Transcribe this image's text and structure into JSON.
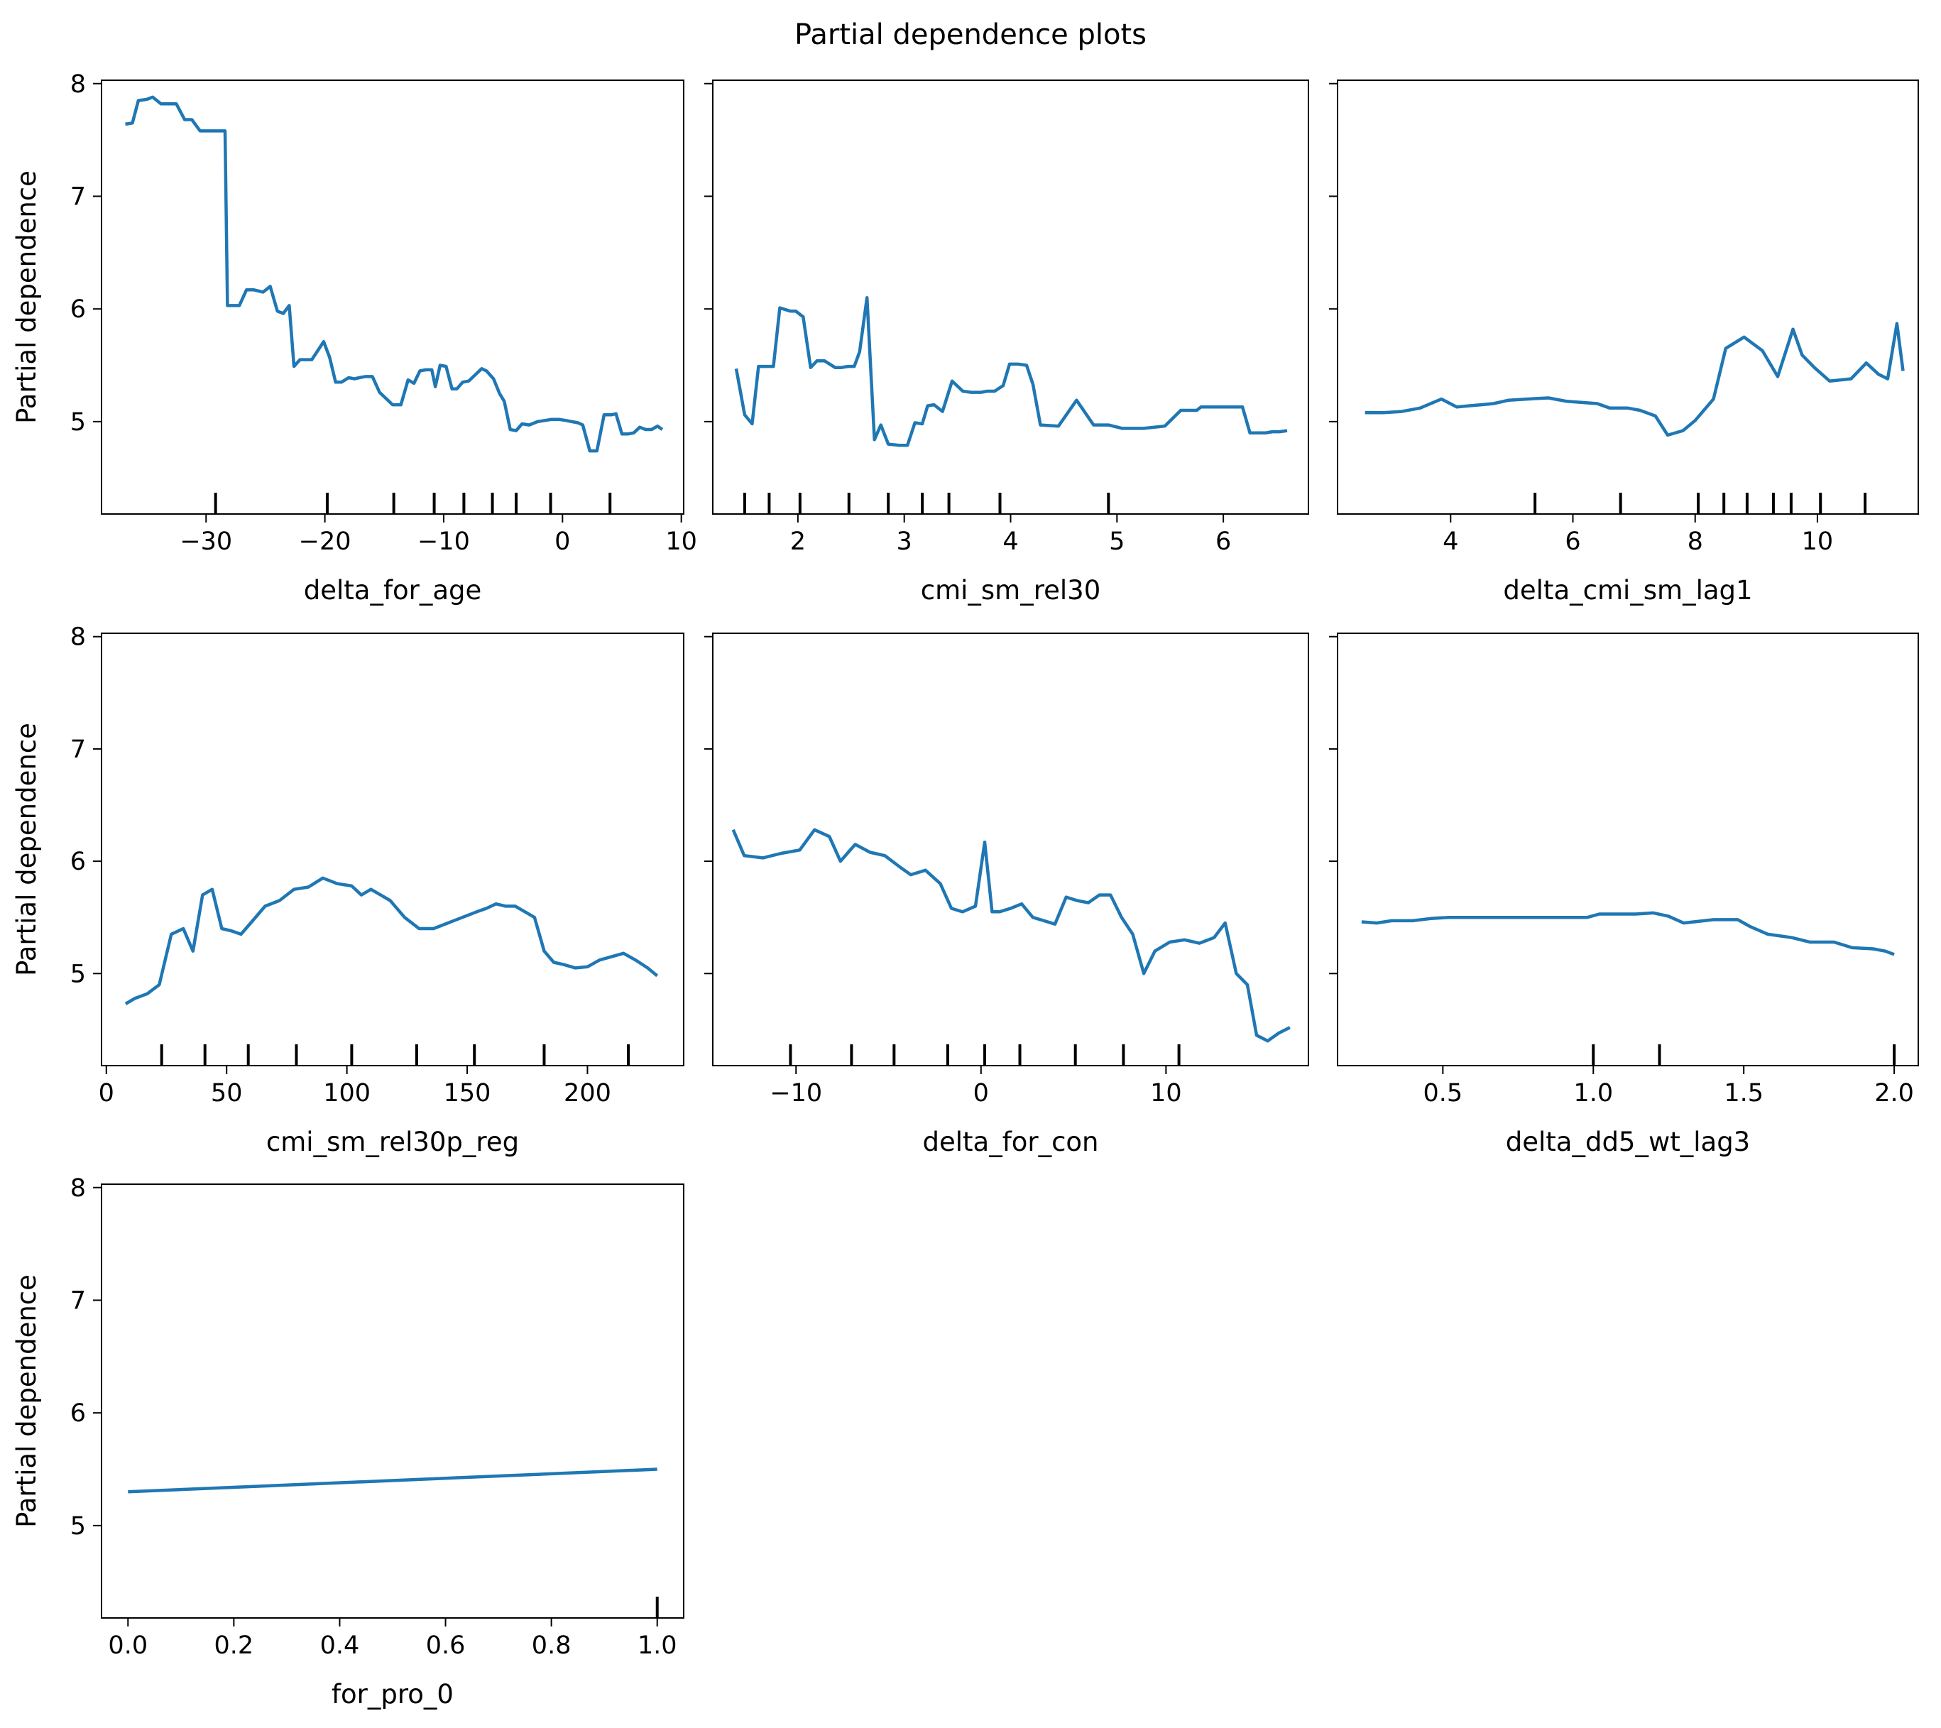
{
  "title": "Partial dependence plots",
  "line_color": "#1f77b4",
  "shared_ylabel": "Partial dependence",
  "chart_data": [
    {
      "type": "line",
      "xlabel": "delta_for_age",
      "ylabel": "Partial dependence",
      "xlim": [
        -38.8,
        10.2
      ],
      "ylim": [
        4.18,
        8.03
      ],
      "xticks": [
        -30,
        -20,
        -10,
        0,
        10
      ],
      "xtick_labels": [
        "−30",
        "−20",
        "−10",
        "0",
        "10"
      ],
      "yticks": [
        5,
        6,
        7,
        8
      ],
      "ytick_labels": [
        "5",
        "6",
        "7",
        "8"
      ],
      "deciles": [
        -29.2,
        -19.8,
        -14.2,
        -10.8,
        -8.3,
        -5.9,
        -3.9,
        -1.0,
        4.0
      ],
      "series": [
        {
          "x": [
            -36.8,
            -36.2,
            -35.7,
            -35.0,
            -34.5,
            -33.8,
            -33.2,
            -32.5,
            -31.8,
            -31.2,
            -30.5,
            -29.9,
            -29.3,
            -28.7,
            -28.4,
            -28.2,
            -27.5,
            -27.2,
            -26.6,
            -26.0,
            -25.2,
            -24.6,
            -24.0,
            -23.5,
            -23.0,
            -22.6,
            -22.1,
            -21.5,
            -21.1,
            -20.6,
            -20.1,
            -19.6,
            -19.1,
            -18.6,
            -18.0,
            -17.5,
            -17.1,
            -16.6,
            -16.0,
            -15.4,
            -14.8,
            -14.3,
            -13.6,
            -13.0,
            -12.5,
            -12.0,
            -11.5,
            -11.0,
            -10.7,
            -10.3,
            -9.8,
            -9.3,
            -8.9,
            -8.4,
            -7.9,
            -7.3,
            -6.8,
            -6.4,
            -5.8,
            -5.3,
            -4.9,
            -4.4,
            -3.9,
            -3.4,
            -2.8,
            -2.1,
            -1.5,
            -0.9,
            -0.3,
            0.3,
            0.8,
            1.3,
            1.7,
            2.3,
            2.9,
            3.5,
            4.1,
            4.5,
            5.0,
            5.5,
            6.0,
            6.5,
            7.0,
            7.5,
            8.0,
            8.4
          ],
          "y": [
            7.64,
            7.65,
            7.85,
            7.86,
            7.88,
            7.82,
            7.82,
            7.82,
            7.68,
            7.68,
            7.58,
            7.58,
            7.58,
            7.58,
            7.58,
            6.03,
            6.03,
            6.03,
            6.17,
            6.17,
            6.15,
            6.2,
            5.98,
            5.96,
            6.03,
            5.49,
            5.55,
            5.55,
            5.55,
            5.63,
            5.71,
            5.57,
            5.35,
            5.35,
            5.39,
            5.38,
            5.39,
            5.4,
            5.4,
            5.26,
            5.2,
            5.15,
            5.15,
            5.37,
            5.34,
            5.45,
            5.46,
            5.46,
            5.31,
            5.5,
            5.49,
            5.29,
            5.29,
            5.35,
            5.36,
            5.42,
            5.47,
            5.45,
            5.38,
            5.25,
            5.18,
            4.93,
            4.92,
            4.98,
            4.97,
            5.0,
            5.01,
            5.02,
            5.02,
            5.01,
            5.0,
            4.99,
            4.97,
            4.74,
            4.74,
            5.06,
            5.06,
            5.07,
            4.89,
            4.89,
            4.9,
            4.95,
            4.93,
            4.93,
            4.96,
            4.93
          ]
        }
      ]
    },
    {
      "type": "line",
      "xlabel": "cmi_sm_rel30",
      "ylabel": "",
      "xlim": [
        1.2,
        6.8
      ],
      "ylim": [
        4.18,
        8.03
      ],
      "xticks": [
        2,
        3,
        4,
        5,
        6
      ],
      "xtick_labels": [
        "2",
        "3",
        "4",
        "5",
        "6"
      ],
      "yticks": [
        5,
        6,
        7,
        8
      ],
      "ytick_labels": [
        "",
        "",
        "",
        ""
      ],
      "deciles": [
        1.5,
        1.73,
        2.02,
        2.48,
        2.85,
        3.17,
        3.42,
        3.9,
        4.92
      ],
      "series": [
        {
          "x": [
            1.42,
            1.5,
            1.57,
            1.63,
            1.72,
            1.77,
            1.83,
            1.93,
            1.98,
            2.05,
            2.12,
            2.18,
            2.25,
            2.35,
            2.41,
            2.47,
            2.53,
            2.58,
            2.65,
            2.72,
            2.78,
            2.85,
            2.95,
            2.98,
            3.03,
            3.1,
            3.17,
            3.22,
            3.28,
            3.36,
            3.45,
            3.55,
            3.63,
            3.72,
            3.78,
            3.85,
            3.93,
            3.99,
            4.07,
            4.15,
            4.21,
            4.28,
            4.45,
            4.62,
            4.78,
            4.92,
            5.05,
            5.12,
            5.25,
            5.45,
            5.6,
            5.75,
            5.79,
            5.95,
            6.08,
            6.18,
            6.25,
            6.31,
            6.4,
            6.46,
            6.53,
            6.6
          ],
          "y": [
            5.47,
            5.06,
            4.98,
            5.49,
            5.49,
            5.49,
            6.01,
            5.98,
            5.98,
            5.93,
            5.48,
            5.54,
            5.54,
            5.48,
            5.48,
            5.49,
            5.49,
            5.62,
            6.1,
            4.84,
            4.97,
            4.8,
            4.79,
            4.79,
            4.79,
            4.99,
            4.98,
            5.14,
            5.15,
            5.09,
            5.36,
            5.27,
            5.26,
            5.26,
            5.27,
            5.27,
            5.32,
            5.51,
            5.51,
            5.5,
            5.33,
            4.97,
            4.96,
            5.19,
            4.97,
            4.97,
            4.94,
            4.94,
            4.94,
            4.96,
            5.1,
            5.1,
            5.13,
            5.13,
            5.13,
            5.13,
            4.9,
            4.9,
            4.9,
            4.91,
            4.91,
            4.92
          ]
        }
      ]
    },
    {
      "type": "line",
      "xlabel": "delta_cmi_sm_lag1",
      "ylabel": "",
      "xlim": [
        2.15,
        11.65
      ],
      "ylim": [
        4.18,
        8.03
      ],
      "xticks": [
        4,
        6,
        8,
        10
      ],
      "xtick_labels": [
        "4",
        "6",
        "8",
        "10"
      ],
      "yticks": [
        5,
        6,
        7,
        8
      ],
      "ytick_labels": [
        "",
        "",
        "",
        ""
      ],
      "deciles": [
        5.38,
        6.78,
        8.05,
        8.47,
        8.85,
        9.28,
        9.57,
        10.05,
        10.78
      ],
      "series": [
        {
          "x": [
            2.6,
            2.9,
            3.2,
            3.5,
            3.85,
            4.1,
            4.3,
            4.5,
            4.7,
            4.95,
            5.25,
            5.6,
            5.9,
            6.15,
            6.4,
            6.6,
            6.9,
            7.1,
            7.35,
            7.55,
            7.8,
            8.0,
            8.3,
            8.5,
            8.8,
            9.1,
            9.35,
            9.6,
            9.75,
            9.95,
            10.2,
            10.55,
            10.8,
            11.0,
            11.15,
            11.3,
            11.4
          ],
          "y": [
            5.08,
            5.08,
            5.09,
            5.12,
            5.2,
            5.13,
            5.14,
            5.15,
            5.16,
            5.19,
            5.2,
            5.21,
            5.18,
            5.17,
            5.16,
            5.12,
            5.12,
            5.1,
            5.05,
            4.88,
            4.92,
            5.01,
            5.2,
            5.65,
            5.75,
            5.63,
            5.4,
            5.82,
            5.59,
            5.48,
            5.36,
            5.38,
            5.52,
            5.42,
            5.38,
            5.87,
            5.45
          ]
        }
      ]
    },
    {
      "type": "line",
      "xlabel": "cmi_sm_rel30p_reg",
      "ylabel": "Partial dependence",
      "xlim": [
        -2,
        240
      ],
      "ylim": [
        4.18,
        8.03
      ],
      "xticks": [
        0,
        50,
        100,
        150,
        200
      ],
      "xtick_labels": [
        "0",
        "50",
        "100",
        "150",
        "200"
      ],
      "yticks": [
        5,
        6,
        7,
        8
      ],
      "ytick_labels": [
        "5",
        "6",
        "7",
        "8"
      ],
      "deciles": [
        23,
        41,
        59,
        79,
        102,
        129,
        153,
        182,
        217
      ],
      "series": [
        {
          "x": [
            8,
            12,
            17,
            22,
            27,
            32,
            36,
            40,
            44,
            48,
            52,
            56,
            60,
            66,
            72,
            78,
            84,
            90,
            96,
            102,
            106,
            110,
            114,
            118,
            124,
            130,
            136,
            142,
            148,
            154,
            158,
            162,
            166,
            170,
            174,
            178,
            182,
            186,
            190,
            195,
            200,
            205,
            210,
            215,
            220,
            225,
            229
          ],
          "y": [
            4.73,
            4.78,
            4.82,
            4.9,
            5.35,
            5.4,
            5.2,
            5.7,
            5.75,
            5.4,
            5.38,
            5.35,
            5.45,
            5.6,
            5.65,
            5.75,
            5.77,
            5.85,
            5.8,
            5.78,
            5.7,
            5.75,
            5.7,
            5.65,
            5.5,
            5.4,
            5.4,
            5.45,
            5.5,
            5.55,
            5.58,
            5.62,
            5.6,
            5.6,
            5.55,
            5.5,
            5.2,
            5.1,
            5.08,
            5.05,
            5.06,
            5.12,
            5.15,
            5.18,
            5.12,
            5.05,
            4.98
          ]
        }
      ]
    },
    {
      "type": "line",
      "xlabel": "delta_for_con",
      "ylabel": "",
      "xlim": [
        -14.5,
        17.7
      ],
      "ylim": [
        4.18,
        8.03
      ],
      "xticks": [
        -10,
        0,
        10
      ],
      "xtick_labels": [
        "−10",
        "0",
        "10"
      ],
      "yticks": [
        5,
        6,
        7,
        8
      ],
      "ytick_labels": [
        "",
        "",
        "",
        ""
      ],
      "deciles": [
        -10.3,
        -7.0,
        -4.7,
        -1.8,
        0.2,
        2.1,
        5.1,
        7.7,
        10.7
      ],
      "series": [
        {
          "x": [
            -13.4,
            -12.8,
            -11.8,
            -10.8,
            -9.8,
            -9.0,
            -8.2,
            -7.6,
            -6.8,
            -6.0,
            -5.2,
            -4.4,
            -3.8,
            -3.0,
            -2.2,
            -1.6,
            -1.0,
            -0.3,
            0.2,
            0.6,
            1.0,
            1.6,
            2.2,
            2.8,
            3.4,
            4.0,
            4.6,
            5.2,
            5.8,
            6.4,
            7.0,
            7.6,
            8.2,
            8.8,
            9.4,
            10.2,
            11.0,
            11.8,
            12.6,
            13.2,
            13.8,
            14.4,
            14.9,
            15.5,
            16.1,
            16.7
          ],
          "y": [
            6.28,
            6.05,
            6.03,
            6.07,
            6.1,
            6.28,
            6.22,
            6.0,
            6.15,
            6.08,
            6.05,
            5.95,
            5.88,
            5.92,
            5.8,
            5.58,
            5.55,
            5.6,
            6.17,
            5.55,
            5.55,
            5.58,
            5.62,
            5.5,
            5.47,
            5.44,
            5.68,
            5.65,
            5.63,
            5.7,
            5.7,
            5.5,
            5.35,
            5.0,
            5.2,
            5.28,
            5.3,
            5.27,
            5.32,
            5.45,
            5.0,
            4.9,
            4.45,
            4.4,
            4.47,
            4.52
          ]
        }
      ]
    },
    {
      "type": "line",
      "xlabel": "delta_dd5_wt_lag3",
      "ylabel": "",
      "xlim": [
        0.15,
        2.08
      ],
      "ylim": [
        4.18,
        8.03
      ],
      "xticks": [
        0.5,
        1.0,
        1.5,
        2.0
      ],
      "xtick_labels": [
        "0.5",
        "1.0",
        "1.5",
        "2.0"
      ],
      "yticks": [
        5,
        6,
        7,
        8
      ],
      "ytick_labels": [
        "",
        "",
        "",
        ""
      ],
      "deciles": [
        1.0,
        1.22,
        2.0
      ],
      "series": [
        {
          "x": [
            0.23,
            0.28,
            0.33,
            0.4,
            0.46,
            0.52,
            0.6,
            0.7,
            0.8,
            0.9,
            0.98,
            1.02,
            1.08,
            1.14,
            1.2,
            1.25,
            1.3,
            1.4,
            1.48,
            1.52,
            1.58,
            1.66,
            1.72,
            1.8,
            1.86,
            1.93,
            1.97,
            2.0
          ],
          "y": [
            5.46,
            5.45,
            5.47,
            5.47,
            5.49,
            5.5,
            5.5,
            5.5,
            5.5,
            5.5,
            5.5,
            5.53,
            5.53,
            5.53,
            5.54,
            5.51,
            5.45,
            5.48,
            5.48,
            5.42,
            5.35,
            5.32,
            5.28,
            5.28,
            5.23,
            5.22,
            5.2,
            5.17
          ]
        }
      ]
    },
    {
      "type": "line",
      "xlabel": "for_pro_0",
      "ylabel": "Partial dependence",
      "xlim": [
        -0.05,
        1.05
      ],
      "ylim": [
        4.18,
        8.03
      ],
      "xticks": [
        0.0,
        0.2,
        0.4,
        0.6,
        0.8,
        1.0
      ],
      "xtick_labels": [
        "0.0",
        "0.2",
        "0.4",
        "0.6",
        "0.8",
        "1.0"
      ],
      "yticks": [
        5,
        6,
        7,
        8
      ],
      "ytick_labels": [
        "5",
        "6",
        "7",
        "8"
      ],
      "deciles": [
        1.0
      ],
      "series": [
        {
          "x": [
            0.0,
            1.0
          ],
          "y": [
            5.3,
            5.5
          ]
        }
      ]
    }
  ]
}
